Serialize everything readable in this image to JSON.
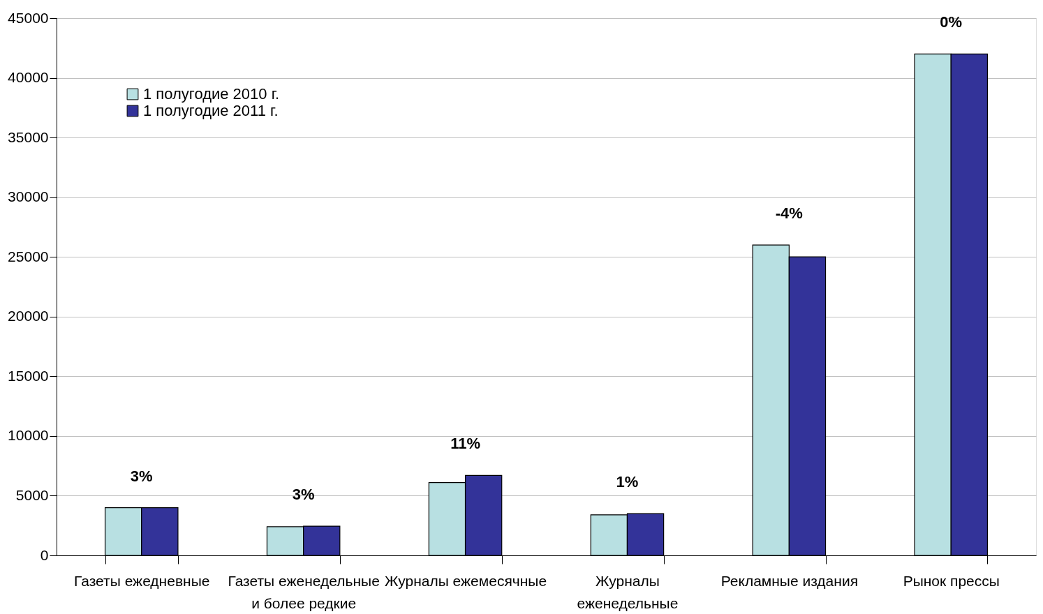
{
  "chart_data": {
    "type": "bar",
    "categories": [
      "Газеты ежедневные",
      "Газеты еженедельные и более редкие",
      "Журналы ежемесячные",
      "Журналы еженедельные",
      "Рекламные издания",
      "Рынок прессы"
    ],
    "series": [
      {
        "name": "1 полугодие 2010 г.",
        "color": "#b8e0e2",
        "values": [
          4000,
          2400,
          6100,
          3400,
          26000,
          42000
        ]
      },
      {
        "name": "1 полугодие 2011 г.",
        "color": "#333399",
        "values": [
          4000,
          2450,
          6700,
          3500,
          25000,
          42000
        ]
      }
    ],
    "annotations": [
      "3%",
      "3%",
      "11%",
      "1%",
      "-4%",
      "0%"
    ],
    "ylim": [
      0,
      45000
    ],
    "yticks": [
      0,
      5000,
      10000,
      15000,
      20000,
      25000,
      30000,
      35000,
      40000,
      45000
    ],
    "grid": "y",
    "legend": "top left"
  }
}
